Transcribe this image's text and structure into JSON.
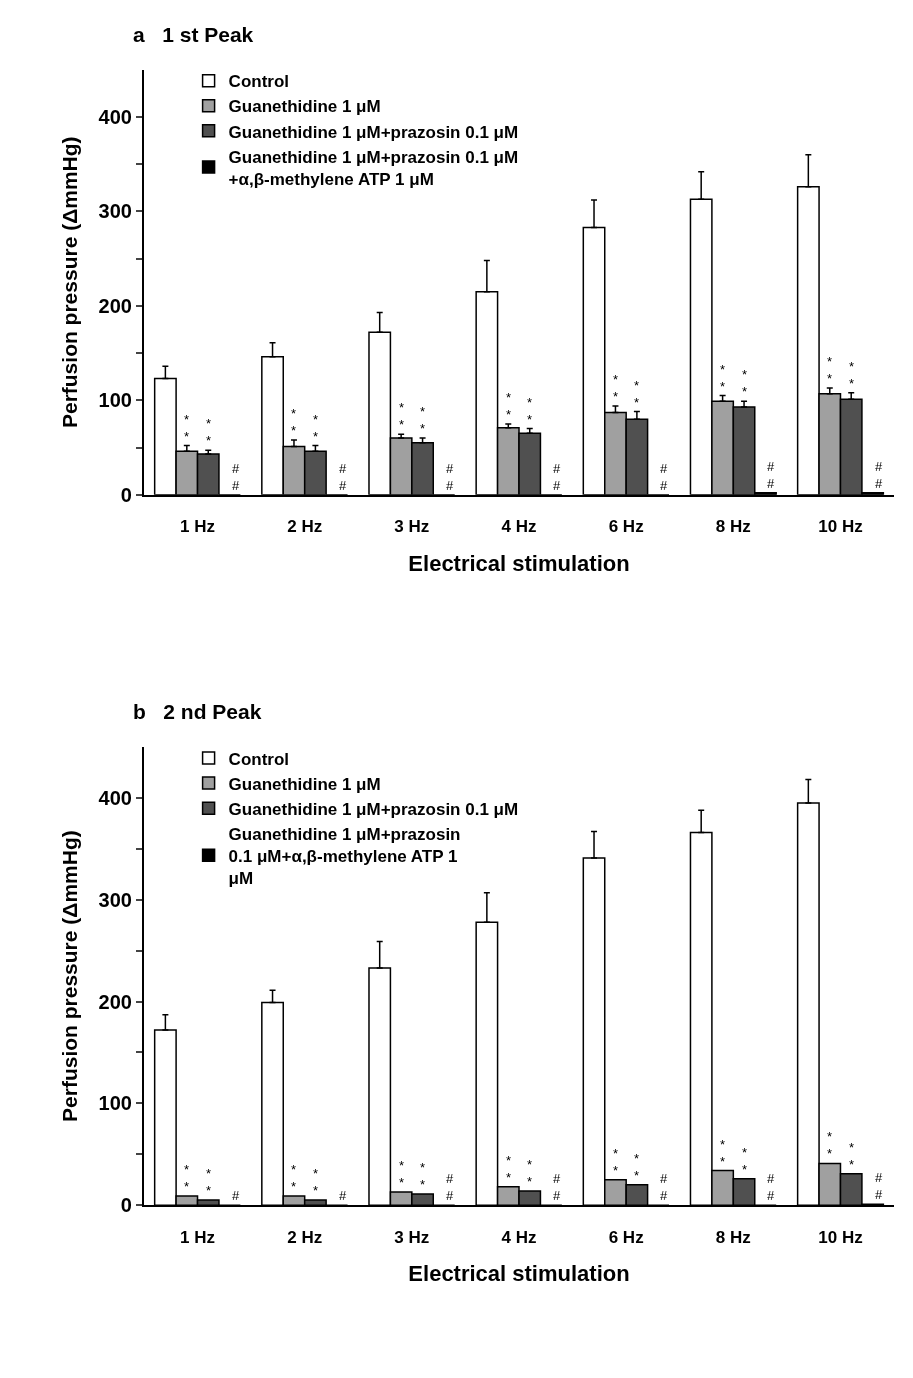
{
  "chart_data": [
    {
      "type": "bar",
      "title": "a   1 st Peak",
      "xlabel": "Electrical stimulation",
      "ylabel": "Perfusion pressure (ΔmmHg)",
      "categories": [
        "1 Hz",
        "2 Hz",
        "3 Hz",
        "4 Hz",
        "6 Hz",
        "8 Hz",
        "10 Hz"
      ],
      "series": [
        {
          "name": "Control",
          "color": "#ffffff",
          "values": [
            123,
            146,
            172,
            215,
            283,
            313,
            326
          ],
          "errors": [
            13,
            15,
            21,
            33,
            29,
            29,
            34
          ]
        },
        {
          "name": "Guanethidine 1 μM",
          "color": "#a0a0a0",
          "values": [
            46,
            51,
            60,
            71,
            87,
            99,
            107
          ],
          "errors": [
            6,
            7,
            4,
            4,
            7,
            6,
            6
          ],
          "value_labels": [
            "**",
            "**",
            "**",
            "**",
            "**",
            "**",
            "**"
          ]
        },
        {
          "name": "Guanethidine 1 μM+prazosin 0.1 μM",
          "color": "#505050",
          "values": [
            43,
            46,
            55,
            65,
            80,
            93,
            101
          ],
          "errors": [
            4,
            6,
            5,
            5,
            8,
            6,
            7
          ],
          "value_labels": [
            "**",
            "**",
            "**",
            "**",
            "**",
            "**",
            "**"
          ]
        },
        {
          "name": "Guanethidine 1 μM+prazosin 0.1 μM\n+α,β-methylene ATP 1 μM",
          "color": "#000000",
          "values": [
            0,
            0,
            0,
            0,
            0,
            2,
            2
          ],
          "value_labels": [
            "##",
            "##",
            "##",
            "##",
            "##",
            "##",
            "##"
          ]
        }
      ],
      "ylim": [
        0,
        450
      ],
      "yticks": [
        0,
        {
          "value": 50,
          "label": null
        },
        100,
        {
          "value": 150,
          "label": null
        },
        200,
        {
          "value": 250,
          "label": null
        },
        300,
        {
          "value": 350,
          "label": null
        },
        400
      ],
      "legend": "top left"
    },
    {
      "type": "bar",
      "title": "b   2 nd Peak",
      "xlabel": "Electrical stimulation",
      "ylabel": "Perfusion pressure (ΔmmHg)",
      "categories": [
        "1 Hz",
        "2 Hz",
        "3 Hz",
        "4 Hz",
        "6 Hz",
        "8 Hz",
        "10 Hz"
      ],
      "series": [
        {
          "name": "Control",
          "color": "#ffffff",
          "values": [
            172,
            199,
            233,
            278,
            341,
            366,
            395
          ],
          "errors": [
            15,
            12,
            26,
            29,
            26,
            22,
            23
          ]
        },
        {
          "name": "Guanethidine 1 μM",
          "color": "#a0a0a0",
          "values": [
            9,
            9,
            13,
            18,
            25,
            34,
            41
          ],
          "value_labels": [
            "**",
            "**",
            "**",
            "**",
            "**",
            "**",
            "**"
          ]
        },
        {
          "name": "Guanethidine 1 μM+prazosin 0.1 μM",
          "color": "#505050",
          "values": [
            5,
            5,
            11,
            14,
            20,
            26,
            31
          ],
          "value_labels": [
            "**",
            "**",
            "**",
            "**",
            "**",
            "**",
            "**"
          ]
        },
        {
          "name": "Guanethidine 1 μM+prazosin\n0.1 μM+α,β-methylene ATP 1\nμM",
          "color": "#000000",
          "values": [
            0,
            0,
            0,
            0,
            0,
            0,
            1
          ],
          "value_labels": [
            "#",
            "#",
            "##",
            "##",
            "##",
            "##",
            "##"
          ]
        }
      ],
      "ylim": [
        0,
        450
      ],
      "yticks": [
        0,
        {
          "value": 50,
          "label": null
        },
        100,
        {
          "value": 150,
          "label": null
        },
        200,
        {
          "value": 250,
          "label": null
        },
        300,
        {
          "value": 350,
          "label": null
        },
        400
      ],
      "legend": "top left"
    }
  ]
}
